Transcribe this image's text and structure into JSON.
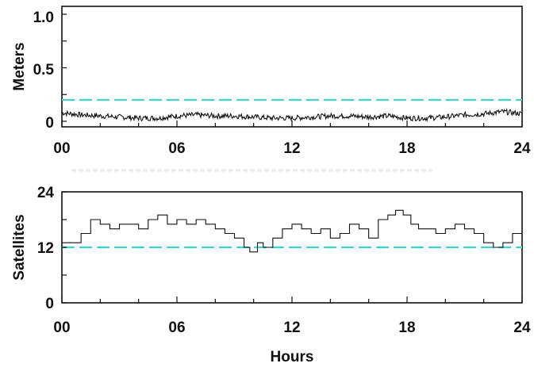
{
  "chart_data": [
    {
      "type": "line",
      "ylabel": "Meters",
      "xlabel": "",
      "xlim": [
        0,
        24
      ],
      "ylim": [
        0,
        1.0
      ],
      "x_ticks": [
        "00",
        "06",
        "12",
        "18",
        "24"
      ],
      "y_ticks": [
        "0",
        "0.5",
        "1.0"
      ],
      "threshold": 0.2,
      "threshold_color": "#3fd4c4",
      "series_color": "#111111",
      "series": [
        {
          "x": [
            0,
            1,
            2,
            3,
            4,
            5,
            6,
            7,
            8,
            9,
            10,
            11,
            12,
            13,
            14,
            15,
            16,
            17,
            18,
            19,
            20,
            21,
            22,
            23,
            24
          ],
          "y": [
            0.08,
            0.06,
            0.05,
            0.04,
            0.03,
            0.03,
            0.05,
            0.06,
            0.05,
            0.05,
            0.04,
            0.03,
            0.03,
            0.04,
            0.05,
            0.05,
            0.04,
            0.05,
            0.03,
            0.03,
            0.04,
            0.06,
            0.07,
            0.09,
            0.07
          ]
        }
      ]
    },
    {
      "type": "line",
      "ylabel": "Satellites",
      "xlabel": "Hours",
      "xlim": [
        0,
        24
      ],
      "ylim": [
        0,
        24
      ],
      "x_ticks": [
        "00",
        "06",
        "12",
        "18",
        "24"
      ],
      "y_ticks": [
        "0",
        "12",
        "24"
      ],
      "threshold": 12,
      "threshold_color": "#3fd4c4",
      "series_color": "#111111",
      "series": [
        {
          "x": [
            0,
            0.8,
            1.0,
            1.5,
            2.0,
            2.5,
            3.0,
            3.5,
            4.0,
            4.5,
            5.0,
            5.5,
            6.0,
            6.5,
            7.0,
            7.5,
            8.0,
            8.5,
            9.0,
            9.5,
            9.8,
            10.2,
            10.5,
            11.0,
            11.5,
            12.0,
            12.5,
            13.0,
            13.5,
            14.0,
            14.5,
            15.0,
            15.5,
            16.0,
            16.5,
            17.0,
            17.4,
            17.8,
            18.2,
            18.6,
            19.0,
            19.5,
            20.0,
            20.5,
            21.0,
            21.5,
            22.0,
            22.5,
            23.0,
            23.5,
            24.0
          ],
          "y": [
            13,
            13,
            15,
            18,
            17,
            16,
            17,
            17,
            16,
            18,
            19,
            17,
            18,
            17,
            18,
            17,
            16,
            15,
            14,
            12,
            11,
            13,
            12,
            14,
            16,
            17,
            16,
            15,
            16,
            14,
            15,
            17,
            16,
            14,
            18,
            19,
            20,
            19,
            17,
            16,
            16,
            15,
            16,
            17,
            16,
            15,
            13,
            12,
            13,
            15,
            15
          ]
        }
      ]
    }
  ]
}
